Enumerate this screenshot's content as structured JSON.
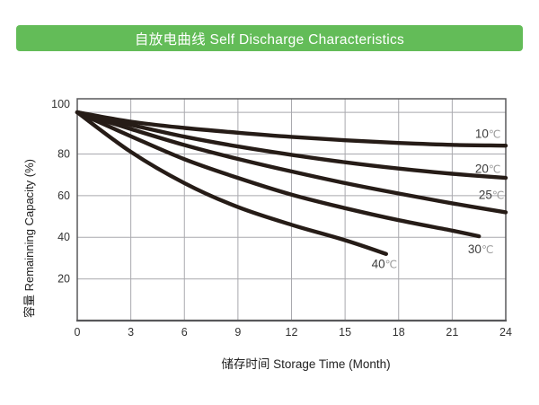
{
  "header": {
    "title": "自放电曲线 Self Discharge Characteristics",
    "bg_color": "#63bc58",
    "text_color": "#ffffff"
  },
  "chart_data": {
    "type": "line",
    "title": "自放电曲线 Self Discharge Characteristics",
    "xlabel": "储存时间 Storage Time (Month)",
    "ylabel": "容量 Remainning Capacity (%)",
    "xlim": [
      0,
      24
    ],
    "ylim": [
      0,
      106.5
    ],
    "x_ticks": [
      0,
      3,
      6,
      9,
      12,
      15,
      18,
      21,
      24
    ],
    "y_ticks": [
      20,
      40,
      60,
      80,
      100
    ],
    "y_label_dy": {
      "100": -9
    },
    "grid": true,
    "legend": "inline-curve-labels",
    "colors": {
      "curve": "#261c17",
      "grid": "#a9a9ae",
      "frame": "#58585a",
      "tick_text": "#333333",
      "axis_title": "#222222",
      "label_num": "#3c3c3c",
      "label_unit": "#9b9b9b"
    },
    "series": [
      {
        "name": "10℃",
        "label_pos": {
          "x": 23.0,
          "y": 89.8
        },
        "points": [
          [
            0,
            100
          ],
          [
            3,
            95.5
          ],
          [
            6,
            92.5
          ],
          [
            9,
            90.2
          ],
          [
            12,
            88.2
          ],
          [
            15,
            86.6
          ],
          [
            18,
            85.3
          ],
          [
            21,
            84.4
          ],
          [
            24,
            84
          ]
        ]
      },
      {
        "name": "20℃",
        "label_pos": {
          "x": 23.0,
          "y": 73.0
        },
        "points": [
          [
            0,
            100
          ],
          [
            3,
            94
          ],
          [
            6,
            88.3
          ],
          [
            9,
            83.6
          ],
          [
            12,
            79.6
          ],
          [
            15,
            76
          ],
          [
            18,
            73
          ],
          [
            21,
            70.5
          ],
          [
            24,
            68.5
          ]
        ]
      },
      {
        "name": "25℃",
        "label_pos": {
          "x": 23.2,
          "y": 60.5
        },
        "points": [
          [
            0,
            100
          ],
          [
            3,
            92
          ],
          [
            6,
            84.3
          ],
          [
            9,
            77.6
          ],
          [
            12,
            71.6
          ],
          [
            15,
            66
          ],
          [
            18,
            61
          ],
          [
            21,
            56.3
          ],
          [
            24,
            52
          ]
        ]
      },
      {
        "name": "30℃",
        "label_pos": {
          "x": 22.6,
          "y": 34.5
        },
        "points": [
          [
            0,
            100
          ],
          [
            3,
            88.5
          ],
          [
            6,
            77.5
          ],
          [
            9,
            68.5
          ],
          [
            12,
            60.5
          ],
          [
            15,
            54
          ],
          [
            18,
            48.2
          ],
          [
            21,
            43.2
          ],
          [
            22.5,
            40.5
          ]
        ]
      },
      {
        "name": "40℃",
        "label_pos": {
          "x": 17.2,
          "y": 27.3
        },
        "points": [
          [
            0,
            100
          ],
          [
            3,
            81
          ],
          [
            6,
            66
          ],
          [
            9,
            54.5
          ],
          [
            12,
            46
          ],
          [
            15,
            38.6
          ],
          [
            17.3,
            32
          ]
        ]
      }
    ]
  }
}
